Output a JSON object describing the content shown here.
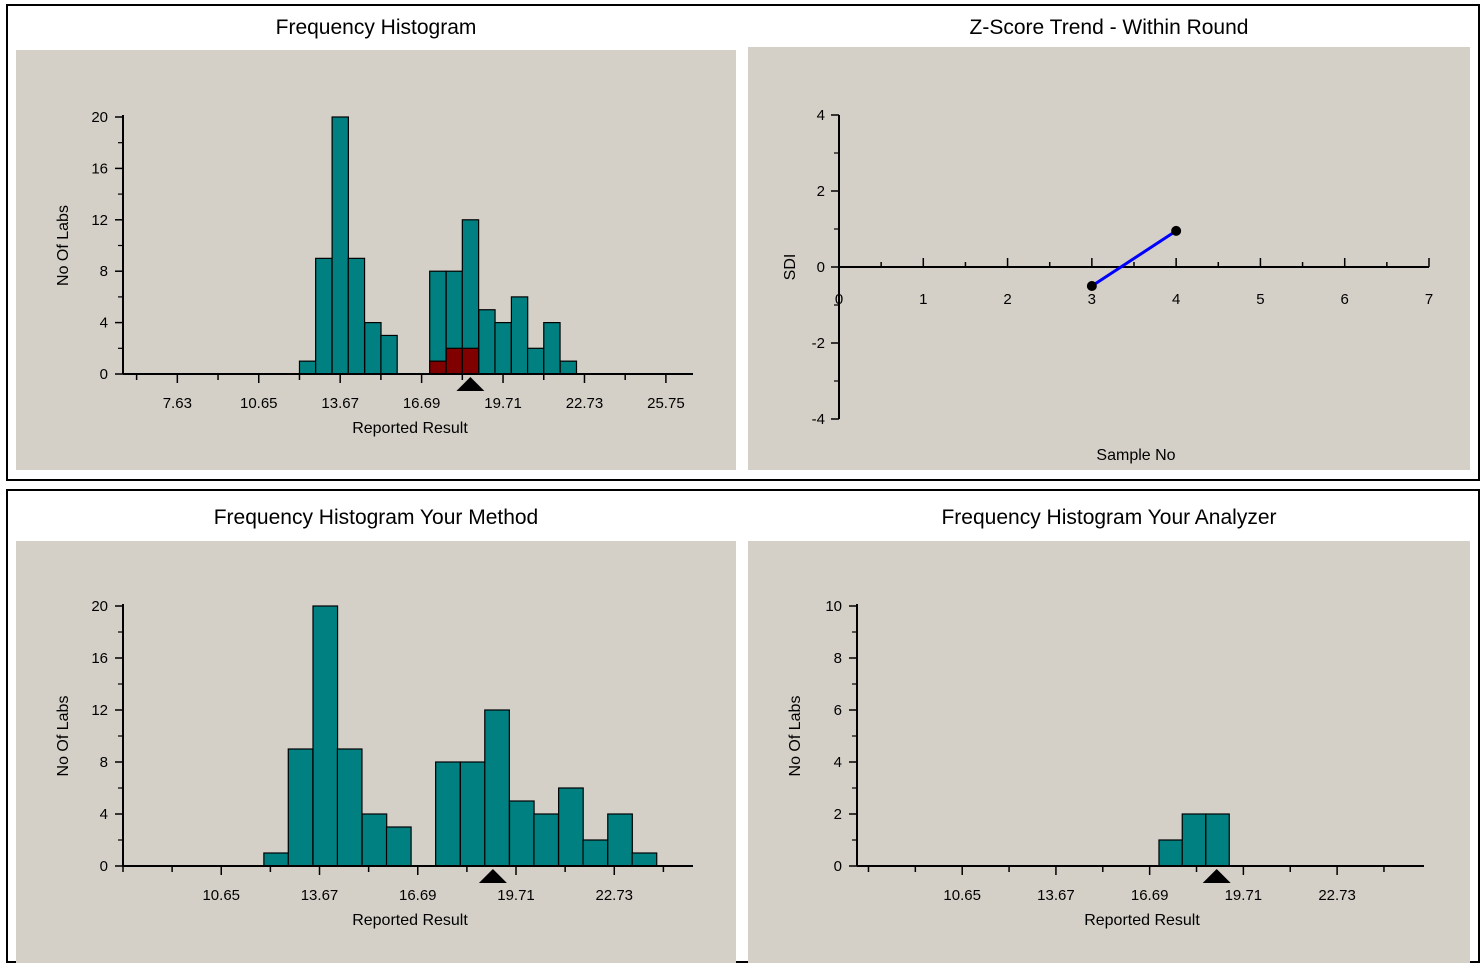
{
  "colors": {
    "background": "#d4d0c8",
    "bar": "#008080",
    "highlight_bar": "#800000",
    "line": "#0000ff",
    "marker": "#000000"
  },
  "chart_data": [
    {
      "type": "bar",
      "title": "Frequency Histogram",
      "xlabel": "Reported Result",
      "ylabel": "No Of Labs",
      "xlim": [
        5.615,
        26.755
      ],
      "ylim": [
        0,
        20
      ],
      "xticklabels": [
        "7.63",
        "10.65",
        "13.67",
        "16.69",
        "19.71",
        "22.73",
        "25.75"
      ],
      "yticks": [
        0,
        4,
        8,
        12,
        16,
        20
      ],
      "bin_width": 0.604,
      "series": [
        {
          "bins": [
            12.16,
            12.76,
            13.37,
            13.97,
            14.58,
            15.18,
            15.79,
            16.99,
            17.6,
            18.2,
            18.81,
            19.41,
            20.02,
            20.62,
            21.22,
            21.83,
            22.43
          ],
          "values": [
            1,
            9,
            20,
            9,
            4,
            3,
            0,
            8,
            8,
            12,
            5,
            4,
            6,
            2,
            4,
            1,
            0
          ]
        },
        {
          "bins": [
            16.99,
            17.6,
            18.2
          ],
          "values": [
            1,
            2,
            2
          ]
        }
      ],
      "marker_x": 18.5
    },
    {
      "type": "line",
      "title": "Z-Score Trend - Within Round",
      "xlabel": "Sample No",
      "ylabel": "SDI",
      "xlim": [
        0,
        7
      ],
      "ylim": [
        -4,
        4
      ],
      "xticks": [
        0,
        1,
        2,
        3,
        4,
        5,
        6,
        7
      ],
      "yticks": [
        -4,
        -2,
        0,
        2,
        4
      ],
      "series": [
        {
          "x": [
            3,
            4
          ],
          "y": [
            -0.5,
            0.95
          ]
        }
      ]
    },
    {
      "type": "bar",
      "title": "Frequency Histogram Your Method",
      "xlabel": "Reported Result",
      "ylabel": "No Of Labs",
      "xlim": [
        7.63,
        25.15
      ],
      "ylim": [
        0,
        20
      ],
      "xticklabels": [
        "10.65",
        "13.67",
        "16.69",
        "19.71",
        "22.73"
      ],
      "yticks": [
        0,
        4,
        8,
        12,
        16,
        20
      ],
      "bin_width": 0.755,
      "series": [
        {
          "bins": [
            11.96,
            12.71,
            13.47,
            14.22,
            14.98,
            15.73,
            16.49,
            17.24,
            18.0,
            18.75,
            19.51,
            20.26,
            21.02,
            21.77,
            22.53,
            23.28
          ],
          "values": [
            1,
            9,
            20,
            9,
            4,
            3,
            0,
            8,
            8,
            12,
            5,
            4,
            6,
            2,
            4,
            1
          ]
        }
      ],
      "marker_x": 19.0
    },
    {
      "type": "bar",
      "title": "Frequency Histogram Your  Analyzer",
      "xlabel": "Reported Result",
      "ylabel": "No Of Labs",
      "xlim": [
        7.26,
        25.53
      ],
      "ylim": [
        0,
        10
      ],
      "xticklabels": [
        "10.65",
        "13.67",
        "16.69",
        "19.71",
        "22.73"
      ],
      "yticks": [
        0,
        2,
        4,
        6,
        8,
        10
      ],
      "bin_width": 0.755,
      "series": [
        {
          "bins": [
            16.99,
            17.74,
            18.5
          ],
          "values": [
            1,
            2,
            2
          ]
        }
      ],
      "marker_x": 18.85
    }
  ]
}
